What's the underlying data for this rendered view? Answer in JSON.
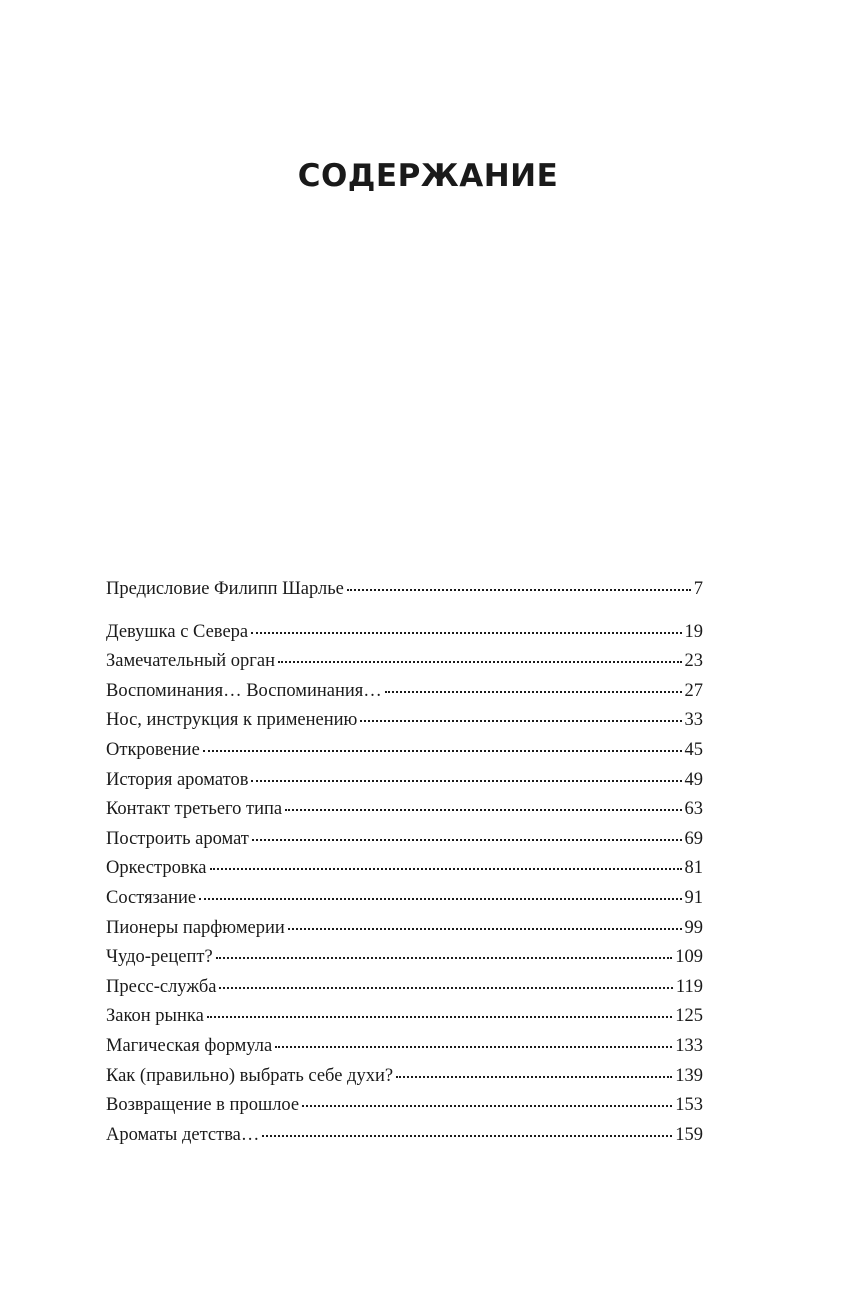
{
  "title": "СОДЕРЖАНИЕ",
  "entries": [
    {
      "label": "Предисловие Филипп Шарлье",
      "page": "7"
    },
    {
      "label": "Девушка с Севера",
      "page": "19"
    },
    {
      "label": "Замечательный орган",
      "page": "23"
    },
    {
      "label": "Воспоминания… Воспоминания…",
      "page": "27"
    },
    {
      "label": "Нос, инструкция к применению",
      "page": "33"
    },
    {
      "label": "Откровение",
      "page": "45"
    },
    {
      "label": "История ароматов",
      "page": "49"
    },
    {
      "label": "Контакт третьего типа",
      "page": "63"
    },
    {
      "label": "Построить аромат",
      "page": "69"
    },
    {
      "label": "Оркестровка",
      "page": "81"
    },
    {
      "label": "Состязание",
      "page": "91"
    },
    {
      "label": "Пионеры парфюмерии",
      "page": "99"
    },
    {
      "label": "Чудо-рецепт?",
      "page": "109"
    },
    {
      "label": "Пресс-служба",
      "page": "119"
    },
    {
      "label": "Закон рынка",
      "page": "125"
    },
    {
      "label": "Магическая формула",
      "page": "133"
    },
    {
      "label": "Как (правильно) выбрать себе духи?",
      "page": "139"
    },
    {
      "label": "Возвращение в прошлое",
      "page": "153"
    },
    {
      "label": "Ароматы детства…",
      "page": "159"
    }
  ]
}
